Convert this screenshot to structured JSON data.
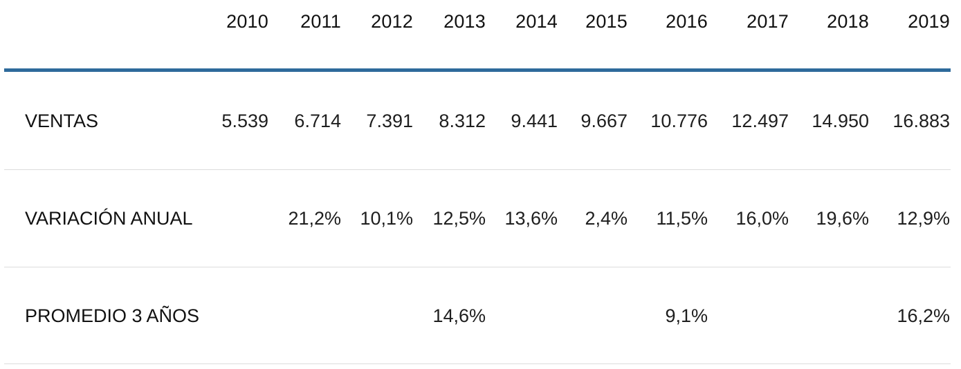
{
  "table": {
    "years": [
      "2010",
      "2011",
      "2012",
      "2013",
      "2014",
      "2015",
      "2016",
      "2017",
      "2018",
      "2019"
    ],
    "rows": [
      {
        "label": "VENTAS",
        "values": [
          "5.539",
          "6.714",
          "7.391",
          "8.312",
          "9.441",
          "9.667",
          "10.776",
          "12.497",
          "14.950",
          "16.883"
        ]
      },
      {
        "label": "VARIACIÓN ANUAL",
        "values": [
          "",
          "21,2%",
          "10,1%",
          "12,5%",
          "13,6%",
          "2,4%",
          "11,5%",
          "16,0%",
          "19,6%",
          "12,9%"
        ]
      },
      {
        "label": "PROMEDIO 3 AÑOS",
        "values": [
          "",
          "",
          "",
          "14,6%",
          "",
          "",
          "9,1%",
          "",
          "",
          "16,2%"
        ]
      }
    ],
    "colors": {
      "header_rule": "#2e6a9b",
      "row_rule": "#dcdcdc",
      "text": "#1a1a1a"
    }
  }
}
